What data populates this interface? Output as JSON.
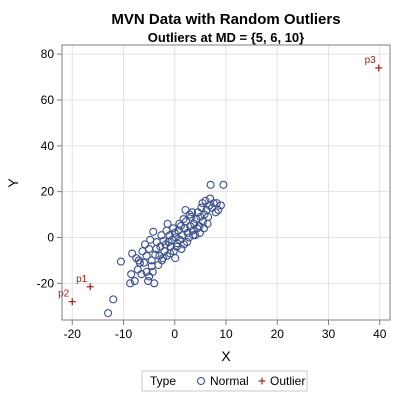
{
  "chart_data": {
    "type": "scatter",
    "title": "MVN Data with Random Outliers",
    "subtitle": "Outliers at MD = {5, 6, 10}",
    "xlabel": "X",
    "ylabel": "Y",
    "xlim": [
      -22,
      42
    ],
    "ylim": [
      -36,
      84
    ],
    "xticks": [
      -20,
      -10,
      0,
      10,
      20,
      30,
      40
    ],
    "yticks": [
      -20,
      0,
      20,
      40,
      60,
      80
    ],
    "grid": true,
    "legend": {
      "title": "Type",
      "position": "bottom",
      "entries": [
        "Normal",
        "Outlier"
      ]
    },
    "colors": {
      "normal": "#3b4f8c",
      "outlier": "#a0201a",
      "grid": "#e3e3e3",
      "frame": "#7f7f7f"
    },
    "series": [
      {
        "name": "Normal",
        "marker": "circle",
        "points": [
          [
            -13,
            -33
          ],
          [
            -12,
            -27
          ],
          [
            -10.5,
            -10.5
          ],
          [
            -8.5,
            -16
          ],
          [
            -8.7,
            -20
          ],
          [
            -7.8,
            -19
          ],
          [
            -8.3,
            -7
          ],
          [
            -7.5,
            -9
          ],
          [
            -6.8,
            -11
          ],
          [
            -7.2,
            -14
          ],
          [
            -6,
            -11
          ],
          [
            -5.5,
            -15
          ],
          [
            -5,
            -17
          ],
          [
            -6.3,
            -6
          ],
          [
            -5.8,
            -3
          ],
          [
            -5,
            -5
          ],
          [
            -4.5,
            -10
          ],
          [
            -4,
            -20
          ],
          [
            -4.5,
            -12.5
          ],
          [
            -3.8,
            -7.5
          ],
          [
            -3.5,
            -2
          ],
          [
            -4.2,
            2.5
          ],
          [
            -3,
            -8
          ],
          [
            -2.8,
            -4
          ],
          [
            -2.5,
            -10
          ],
          [
            -2,
            -6
          ],
          [
            -2.2,
            -1.5
          ],
          [
            -1.8,
            -3
          ],
          [
            -1.5,
            -8
          ],
          [
            -1.2,
            -2
          ],
          [
            -1,
            1
          ],
          [
            -0.8,
            -4
          ],
          [
            -0.5,
            -1
          ],
          [
            -0.2,
            -6
          ],
          [
            0,
            2
          ],
          [
            0.2,
            0
          ],
          [
            0.5,
            -2.5
          ],
          [
            0.7,
            3
          ],
          [
            1,
            -1
          ],
          [
            1.2,
            5
          ],
          [
            1.5,
            1
          ],
          [
            1.8,
            -3
          ],
          [
            2,
            4
          ],
          [
            2.2,
            7
          ],
          [
            2.5,
            2
          ],
          [
            2.8,
            0
          ],
          [
            3,
            5
          ],
          [
            3.2,
            9
          ],
          [
            3.5,
            3
          ],
          [
            3.8,
            6
          ],
          [
            4,
            1
          ],
          [
            4.2,
            8
          ],
          [
            4.5,
            11
          ],
          [
            4.8,
            5
          ],
          [
            5,
            9
          ],
          [
            5.2,
            13
          ],
          [
            5.5,
            7
          ],
          [
            5.8,
            10
          ],
          [
            6,
            16
          ],
          [
            6.2,
            12
          ],
          [
            6.5,
            9
          ],
          [
            6.8,
            14
          ],
          [
            7,
            23
          ],
          [
            7.3,
            13
          ],
          [
            7.6,
            15
          ],
          [
            8,
            11
          ],
          [
            8.5,
            12
          ],
          [
            9,
            14
          ],
          [
            9.5,
            23
          ],
          [
            -5.5,
            -8
          ],
          [
            -4.8,
            -1
          ],
          [
            -3.2,
            -12
          ],
          [
            -2.6,
            1
          ],
          [
            -1.6,
            3
          ],
          [
            -0.9,
            -7
          ],
          [
            0.4,
            -4
          ],
          [
            0.9,
            6
          ],
          [
            1.7,
            8
          ],
          [
            2.4,
            -2
          ],
          [
            3.4,
            11
          ],
          [
            4.4,
            4
          ],
          [
            5.4,
            15
          ],
          [
            6.4,
            6
          ],
          [
            -6.5,
            -16
          ],
          [
            -3.6,
            -5
          ],
          [
            -0.3,
            4
          ],
          [
            2.9,
            10
          ],
          [
            4.9,
            2
          ],
          [
            1.3,
            -5
          ],
          [
            -2.3,
            -9
          ],
          [
            -7,
            -10
          ],
          [
            -4.3,
            -15
          ],
          [
            0.1,
            -9
          ],
          [
            3.6,
            1
          ],
          [
            5.7,
            4
          ],
          [
            6.9,
            17
          ],
          [
            8.2,
            15
          ],
          [
            -1.4,
            6
          ],
          [
            2.1,
            12
          ],
          [
            -5.2,
            -19
          ]
        ]
      },
      {
        "name": "Outlier",
        "marker": "plus",
        "points": [
          [
            -16.5,
            -21.5
          ],
          [
            -20,
            -28
          ],
          [
            39.8,
            74
          ]
        ],
        "labels": [
          "p1",
          "p2",
          "p3"
        ]
      }
    ]
  }
}
